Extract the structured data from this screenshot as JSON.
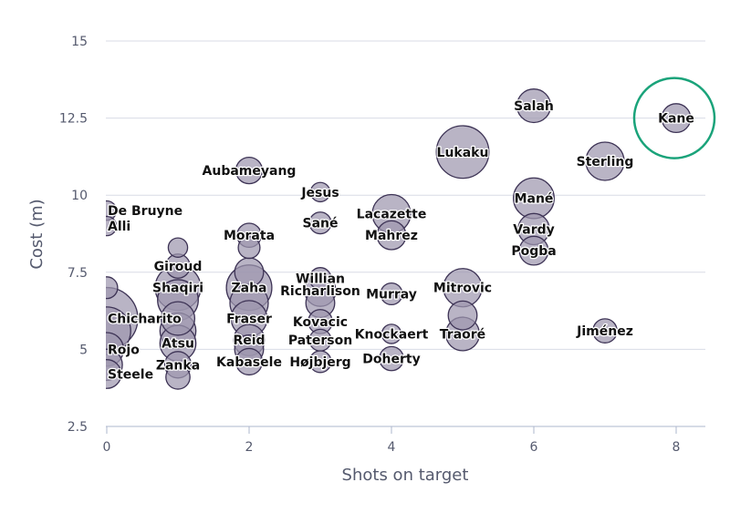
{
  "chart_data": {
    "type": "scatter",
    "variant": "bubble",
    "title": "",
    "xlabel": "Shots on target",
    "ylabel": "Cost (m)",
    "xlim": [
      0,
      8.4
    ],
    "ylim": [
      2.5,
      15.5
    ],
    "xticks": [
      "0",
      "2",
      "4",
      "6",
      "8"
    ],
    "yticks": [
      "2.5",
      "5",
      "7.5",
      "10",
      "12.5",
      "15"
    ],
    "grid": true,
    "legend": "none",
    "bubble_color": "#9e97ae",
    "bubble_stroke": "#3d3355",
    "highlight_color": "#1aa37a",
    "highlighted": "Kane",
    "points": [
      {
        "name": "Kane",
        "x": 8,
        "y": 12.5,
        "size": 0.6,
        "labeled": true
      },
      {
        "name": "Salah",
        "x": 6,
        "y": 12.9,
        "size": 0.8,
        "labeled": true
      },
      {
        "name": "Sterling",
        "x": 7,
        "y": 11.1,
        "size": 1.0,
        "labeled": true
      },
      {
        "name": "Lukaku",
        "x": 5,
        "y": 11.4,
        "size": 1.6,
        "labeled": true
      },
      {
        "name": "Mané",
        "x": 6,
        "y": 9.9,
        "size": 1.1,
        "labeled": true
      },
      {
        "name": "Vardy",
        "x": 6,
        "y": 8.9,
        "size": 0.7,
        "labeled": true
      },
      {
        "name": "Pogba",
        "x": 6,
        "y": 8.2,
        "size": 0.6,
        "labeled": true
      },
      {
        "name": "Jiménez",
        "x": 7,
        "y": 5.6,
        "size": 0.4,
        "labeled": true
      },
      {
        "name": "Lacazette",
        "x": 4,
        "y": 9.4,
        "size": 1.0,
        "labeled": true
      },
      {
        "name": "Mahrez",
        "x": 4,
        "y": 8.7,
        "size": 0.6,
        "labeled": true
      },
      {
        "name": "Murray",
        "x": 4,
        "y": 6.8,
        "size": 0.3,
        "labeled": true
      },
      {
        "name": "Knockaert",
        "x": 4,
        "y": 5.5,
        "size": 0.2,
        "labeled": true
      },
      {
        "name": "Doherty",
        "x": 4,
        "y": 4.7,
        "size": 0.4,
        "labeled": true
      },
      {
        "name": "Mitrovic",
        "x": 5,
        "y": 7.0,
        "size": 1.0,
        "labeled": true
      },
      {
        "name": "",
        "x": 5,
        "y": 6.1,
        "size": 0.6,
        "labeled": false
      },
      {
        "name": "Traoré",
        "x": 5,
        "y": 5.5,
        "size": 0.8,
        "labeled": true
      },
      {
        "name": "Aubameyang",
        "x": 2,
        "y": 10.8,
        "size": 0.5,
        "labeled": true
      },
      {
        "name": "Morata",
        "x": 2,
        "y": 8.7,
        "size": 0.4,
        "labeled": true
      },
      {
        "name": "",
        "x": 2,
        "y": 8.3,
        "size": 0.3,
        "labeled": false
      },
      {
        "name": "",
        "x": 2,
        "y": 7.5,
        "size": 0.6,
        "labeled": false
      },
      {
        "name": "Zaha",
        "x": 2,
        "y": 7.0,
        "size": 1.3,
        "labeled": true
      },
      {
        "name": "",
        "x": 2,
        "y": 6.5,
        "size": 1.0,
        "labeled": false
      },
      {
        "name": "Fraser",
        "x": 2,
        "y": 6.0,
        "size": 0.9,
        "labeled": true
      },
      {
        "name": "Reid",
        "x": 2,
        "y": 5.3,
        "size": 0.7,
        "labeled": true
      },
      {
        "name": "",
        "x": 2,
        "y": 5.0,
        "size": 0.6,
        "labeled": false
      },
      {
        "name": "Kabasele",
        "x": 2,
        "y": 4.6,
        "size": 0.5,
        "labeled": true
      },
      {
        "name": "Jesus",
        "x": 3,
        "y": 10.1,
        "size": 0.2,
        "labeled": true
      },
      {
        "name": "Sané",
        "x": 3,
        "y": 9.1,
        "size": 0.3,
        "labeled": true
      },
      {
        "name": "Willian",
        "x": 3,
        "y": 7.3,
        "size": 0.3,
        "labeled": true
      },
      {
        "name": "Richarlison",
        "x": 3,
        "y": 6.9,
        "size": 0.7,
        "labeled": true
      },
      {
        "name": "",
        "x": 3,
        "y": 6.5,
        "size": 0.6,
        "labeled": false
      },
      {
        "name": "Kovacic",
        "x": 3,
        "y": 5.9,
        "size": 0.4,
        "labeled": true
      },
      {
        "name": "Paterson",
        "x": 3,
        "y": 5.3,
        "size": 0.3,
        "labeled": true
      },
      {
        "name": "Højbjerg",
        "x": 3,
        "y": 4.6,
        "size": 0.3,
        "labeled": true
      },
      {
        "name": "",
        "x": 1,
        "y": 8.3,
        "size": 0.2,
        "labeled": false
      },
      {
        "name": "Giroud",
        "x": 1,
        "y": 7.7,
        "size": 0.4,
        "labeled": true
      },
      {
        "name": "Shaqiri",
        "x": 1,
        "y": 7.0,
        "size": 1.3,
        "labeled": true
      },
      {
        "name": "",
        "x": 1,
        "y": 6.6,
        "size": 1.1,
        "labeled": false
      },
      {
        "name": "",
        "x": 1,
        "y": 6.0,
        "size": 0.8,
        "labeled": false
      },
      {
        "name": "",
        "x": 1,
        "y": 5.6,
        "size": 0.9,
        "labeled": false
      },
      {
        "name": "Atsu",
        "x": 1,
        "y": 5.2,
        "size": 0.9,
        "labeled": true
      },
      {
        "name": "Zanka",
        "x": 1,
        "y": 4.5,
        "size": 0.5,
        "labeled": true
      },
      {
        "name": "",
        "x": 1,
        "y": 4.1,
        "size": 0.4,
        "labeled": false
      },
      {
        "name": "De Bruyne",
        "x": 0,
        "y": 9.5,
        "size": 0.2,
        "labeled": true
      },
      {
        "name": "Alli",
        "x": 0,
        "y": 9.0,
        "size": 0.2,
        "labeled": true
      },
      {
        "name": "",
        "x": 0,
        "y": 7.0,
        "size": 0.3,
        "labeled": false
      },
      {
        "name": "Chicharito",
        "x": 0,
        "y": 6.0,
        "size": 2.0,
        "labeled": true
      },
      {
        "name": "",
        "x": 0,
        "y": 5.6,
        "size": 1.4,
        "labeled": false
      },
      {
        "name": "Rojo",
        "x": 0,
        "y": 5.0,
        "size": 0.8,
        "labeled": true
      },
      {
        "name": "",
        "x": 0,
        "y": 4.5,
        "size": 0.7,
        "labeled": false
      },
      {
        "name": "Steele",
        "x": 0,
        "y": 4.2,
        "size": 0.6,
        "labeled": true
      }
    ]
  }
}
